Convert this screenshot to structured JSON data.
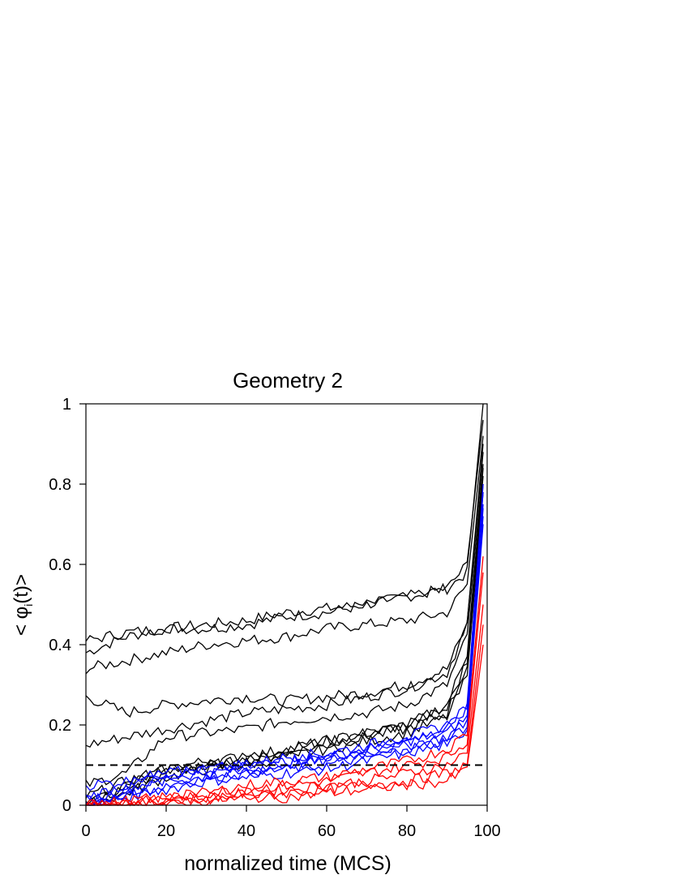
{
  "chart_data": {
    "type": "line",
    "title": "Geometry 2",
    "xlabel": "normalized time (MCS)",
    "ylabel_main": "< φ",
    "ylabel_sub": "i",
    "ylabel_tail": "(t)>",
    "xlim": [
      0,
      100
    ],
    "ylim": [
      0,
      1
    ],
    "x_ticks": [
      0,
      20,
      40,
      60,
      80,
      100
    ],
    "x_tick_labels": [
      "0",
      "20",
      "40",
      "60",
      "80",
      "100"
    ],
    "y_ticks": [
      0,
      0.2,
      0.4,
      0.6,
      0.8,
      1
    ],
    "y_tick_labels": [
      "0",
      "0.2",
      "0.4",
      "0.6",
      "0.8",
      "1"
    ],
    "grid": false,
    "legend": "none",
    "reference_line": {
      "y": 0.1,
      "style": "dashed",
      "color": "#000000"
    },
    "colors": {
      "black_group": "#000000",
      "blue_group": "#0000ff",
      "red_group": "#ff0000"
    },
    "series_groups": [
      {
        "color": "#000000",
        "curves": [
          {
            "x": [
              0,
              10,
              20,
              30,
              40,
              50,
              60,
              70,
              80,
              90,
              95,
              99
            ],
            "y": [
              0.38,
              0.42,
              0.44,
              0.45,
              0.46,
              0.48,
              0.49,
              0.5,
              0.52,
              0.54,
              0.58,
              1.0
            ]
          },
          {
            "x": [
              0,
              10,
              20,
              30,
              40,
              50,
              60,
              70,
              80,
              90,
              95,
              99
            ],
            "y": [
              0.41,
              0.43,
              0.44,
              0.44,
              0.45,
              0.47,
              0.48,
              0.5,
              0.52,
              0.54,
              0.6,
              0.96
            ]
          },
          {
            "x": [
              0,
              10,
              20,
              30,
              40,
              50,
              60,
              70,
              80,
              90,
              95,
              99
            ],
            "y": [
              0.34,
              0.36,
              0.38,
              0.4,
              0.41,
              0.42,
              0.44,
              0.45,
              0.46,
              0.48,
              0.55,
              0.92
            ]
          },
          {
            "x": [
              0,
              10,
              20,
              30,
              40,
              50,
              60,
              70,
              80,
              90,
              95,
              99
            ],
            "y": [
              0.27,
              0.23,
              0.25,
              0.26,
              0.27,
              0.26,
              0.27,
              0.28,
              0.3,
              0.34,
              0.45,
              0.88
            ]
          },
          {
            "x": [
              0,
              10,
              20,
              30,
              40,
              50,
              60,
              70,
              80,
              90,
              95,
              99
            ],
            "y": [
              0.15,
              0.17,
              0.19,
              0.21,
              0.23,
              0.24,
              0.25,
              0.27,
              0.29,
              0.33,
              0.45,
              0.9
            ]
          },
          {
            "x": [
              0,
              10,
              20,
              30,
              40,
              50,
              60,
              70,
              80,
              90,
              95,
              99
            ],
            "y": [
              0.05,
              0.08,
              0.17,
              0.18,
              0.19,
              0.21,
              0.22,
              0.23,
              0.25,
              0.3,
              0.42,
              0.85
            ]
          },
          {
            "x": [
              0,
              10,
              20,
              30,
              40,
              50,
              60,
              70,
              80,
              90,
              95,
              99
            ],
            "y": [
              0.02,
              0.06,
              0.09,
              0.1,
              0.12,
              0.14,
              0.16,
              0.18,
              0.2,
              0.25,
              0.38,
              0.82
            ]
          },
          {
            "x": [
              0,
              10,
              20,
              30,
              40,
              50,
              60,
              70,
              80,
              90,
              95,
              99
            ],
            "y": [
              0.01,
              0.04,
              0.08,
              0.1,
              0.11,
              0.13,
              0.15,
              0.17,
              0.19,
              0.23,
              0.35,
              0.8
            ]
          },
          {
            "x": [
              0,
              10,
              20,
              30,
              40,
              50,
              60,
              70,
              80,
              90,
              95,
              99
            ],
            "y": [
              0.0,
              0.03,
              0.07,
              0.09,
              0.1,
              0.12,
              0.14,
              0.16,
              0.18,
              0.22,
              0.32,
              0.78
            ]
          },
          {
            "x": [
              0,
              10,
              20,
              30,
              40,
              50,
              60,
              70,
              80,
              90,
              95,
              99
            ],
            "y": [
              0.0,
              0.05,
              0.09,
              0.11,
              0.12,
              0.14,
              0.16,
              0.18,
              0.2,
              0.24,
              0.36,
              0.84
            ]
          }
        ]
      },
      {
        "color": "#0000ff",
        "curves": [
          {
            "x": [
              0,
              10,
              20,
              30,
              40,
              50,
              60,
              70,
              80,
              90,
              95,
              99
            ],
            "y": [
              0.05,
              0.06,
              0.08,
              0.09,
              0.1,
              0.11,
              0.12,
              0.14,
              0.16,
              0.18,
              0.22,
              0.75
            ]
          },
          {
            "x": [
              0,
              10,
              20,
              30,
              40,
              50,
              60,
              70,
              80,
              90,
              95,
              99
            ],
            "y": [
              0.02,
              0.05,
              0.08,
              0.09,
              0.1,
              0.12,
              0.13,
              0.15,
              0.17,
              0.2,
              0.25,
              0.78
            ]
          },
          {
            "x": [
              0,
              10,
              20,
              30,
              40,
              50,
              60,
              70,
              80,
              90,
              95,
              99
            ],
            "y": [
              0.01,
              0.04,
              0.07,
              0.08,
              0.09,
              0.11,
              0.12,
              0.14,
              0.16,
              0.19,
              0.24,
              0.8
            ]
          },
          {
            "x": [
              0,
              10,
              20,
              30,
              40,
              50,
              60,
              70,
              80,
              90,
              95,
              99
            ],
            "y": [
              0.0,
              0.03,
              0.06,
              0.07,
              0.08,
              0.1,
              0.11,
              0.13,
              0.15,
              0.17,
              0.21,
              0.72
            ]
          },
          {
            "x": [
              0,
              10,
              20,
              30,
              40,
              50,
              60,
              70,
              80,
              90,
              95,
              99
            ],
            "y": [
              0.0,
              0.02,
              0.05,
              0.07,
              0.08,
              0.09,
              0.1,
              0.12,
              0.14,
              0.16,
              0.2,
              0.7
            ]
          },
          {
            "x": [
              0,
              10,
              20,
              30,
              40,
              50,
              60,
              70,
              80,
              90,
              95,
              99
            ],
            "y": [
              0.0,
              0.02,
              0.04,
              0.06,
              0.07,
              0.08,
              0.09,
              0.11,
              0.13,
              0.15,
              0.19,
              0.74
            ]
          }
        ]
      },
      {
        "color": "#ff0000",
        "curves": [
          {
            "x": [
              0,
              10,
              20,
              30,
              40,
              50,
              60,
              70,
              80,
              90,
              95,
              99
            ],
            "y": [
              0.0,
              0.01,
              0.02,
              0.03,
              0.05,
              0.06,
              0.07,
              0.09,
              0.11,
              0.14,
              0.18,
              0.62
            ]
          },
          {
            "x": [
              0,
              10,
              20,
              30,
              40,
              50,
              60,
              70,
              80,
              90,
              95,
              99
            ],
            "y": [
              0.0,
              0.0,
              0.02,
              0.03,
              0.04,
              0.05,
              0.06,
              0.08,
              0.1,
              0.12,
              0.16,
              0.58
            ]
          },
          {
            "x": [
              0,
              10,
              20,
              30,
              40,
              50,
              60,
              70,
              80,
              90,
              95,
              99
            ],
            "y": [
              0.0,
              0.0,
              0.01,
              0.02,
              0.03,
              0.04,
              0.05,
              0.06,
              0.08,
              0.1,
              0.13,
              0.5
            ]
          },
          {
            "x": [
              0,
              10,
              20,
              30,
              40,
              50,
              60,
              70,
              80,
              90,
              95,
              99
            ],
            "y": [
              0.0,
              0.0,
              0.01,
              0.01,
              0.02,
              0.03,
              0.04,
              0.05,
              0.06,
              0.08,
              0.1,
              0.45
            ]
          },
          {
            "x": [
              0,
              10,
              20,
              30,
              40,
              50,
              60,
              70,
              80,
              90,
              95,
              99
            ],
            "y": [
              0.0,
              0.0,
              0.0,
              0.01,
              0.02,
              0.02,
              0.03,
              0.04,
              0.05,
              0.06,
              0.09,
              0.4
            ]
          }
        ]
      }
    ]
  }
}
